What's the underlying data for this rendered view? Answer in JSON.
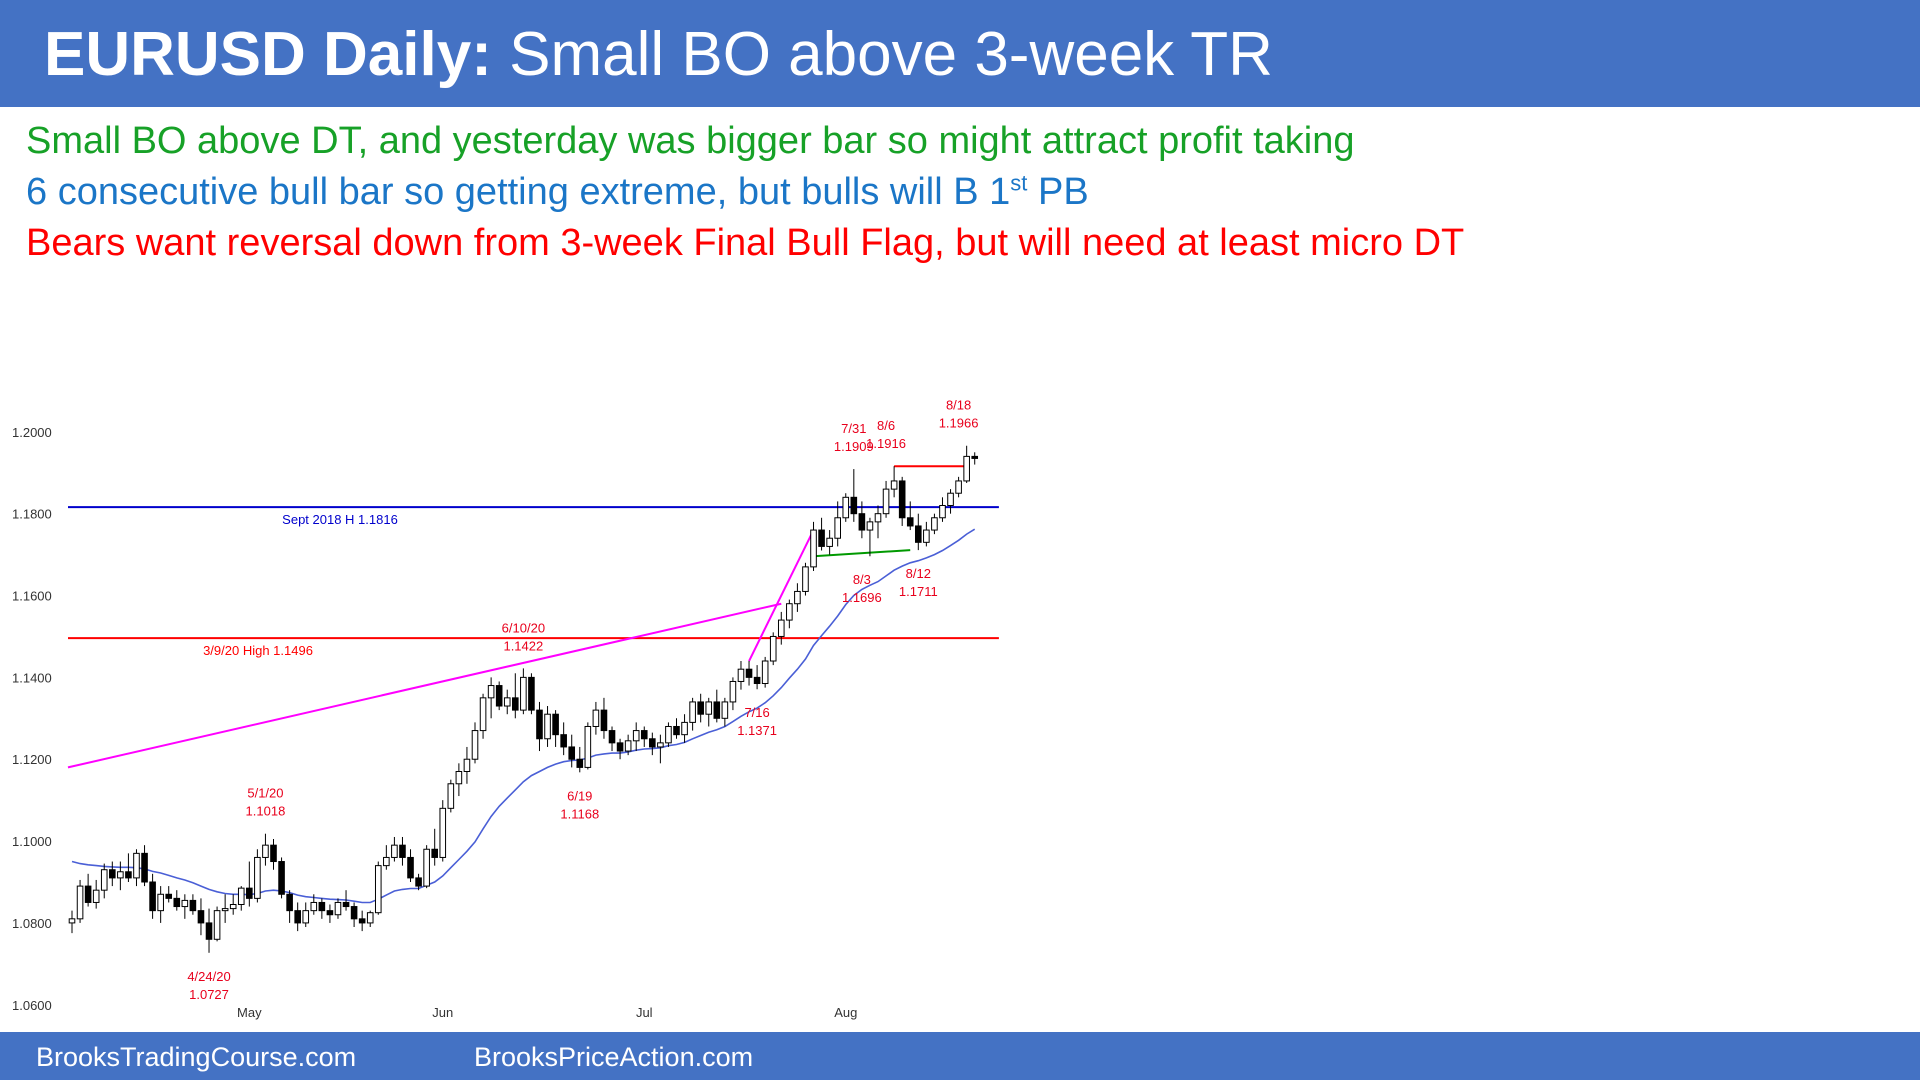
{
  "header": {
    "title_bold": "EURUSD Daily:",
    "title_rest": " Small BO above 3-week TR"
  },
  "notes": [
    {
      "text": "Small BO above DT, and yesterday was bigger bar so might attract profit taking",
      "color": "#17a127"
    },
    {
      "text": "6 consecutive bull bar so getting extreme, but bulls will B 1",
      "sup": "st",
      "tail": " PB",
      "color": "#1b76c7"
    },
    {
      "text": "Bears want reversal down from 3-week Final Bull Flag, but will need at least micro DT",
      "color": "#ff0000"
    }
  ],
  "footer": {
    "left": "BrooksTradingCourse.com",
    "right": "BrooksPriceAction.com"
  },
  "chart_data": {
    "type": "candlestick",
    "title": "",
    "ylim": [
      1.0575,
      1.209
    ],
    "y_ticks": [
      1.06,
      1.08,
      1.1,
      1.12,
      1.14,
      1.16,
      1.18,
      1.2
    ],
    "x_month_labels": [
      {
        "label": "May",
        "bar": 22
      },
      {
        "label": "Jun",
        "bar": 46
      },
      {
        "label": "Jul",
        "bar": 71
      },
      {
        "label": "Aug",
        "bar": 96
      }
    ],
    "candles": [
      [
        1.08,
        1.083,
        1.0775,
        1.081
      ],
      [
        1.081,
        1.0905,
        1.08,
        1.089
      ],
      [
        1.089,
        1.092,
        1.084,
        1.085
      ],
      [
        1.085,
        1.0905,
        1.0835,
        1.088
      ],
      [
        1.088,
        1.0945,
        1.086,
        1.093
      ],
      [
        1.093,
        1.095,
        1.089,
        1.091
      ],
      [
        1.091,
        1.095,
        1.088,
        1.0925
      ],
      [
        1.0925,
        1.097,
        1.09,
        1.091
      ],
      [
        1.091,
        1.098,
        1.089,
        1.097
      ],
      [
        1.097,
        1.099,
        1.089,
        1.09
      ],
      [
        1.09,
        1.092,
        1.081,
        1.083
      ],
      [
        1.083,
        1.089,
        1.08,
        1.087
      ],
      [
        1.087,
        1.089,
        1.085,
        1.086
      ],
      [
        1.086,
        1.088,
        1.083,
        1.084
      ],
      [
        1.084,
        1.087,
        1.081,
        1.0855
      ],
      [
        1.0855,
        1.087,
        1.082,
        1.083
      ],
      [
        1.083,
        1.086,
        1.077,
        1.08
      ],
      [
        1.08,
        1.0835,
        1.0727,
        1.076
      ],
      [
        1.076,
        1.084,
        1.0755,
        1.083
      ],
      [
        1.083,
        1.087,
        1.08,
        1.0835
      ],
      [
        1.0835,
        1.087,
        1.082,
        1.0845
      ],
      [
        1.0845,
        1.089,
        1.083,
        1.0885
      ],
      [
        1.0885,
        1.095,
        1.084,
        1.086
      ],
      [
        1.086,
        1.098,
        1.085,
        1.096
      ],
      [
        1.096,
        1.1018,
        1.094,
        1.099
      ],
      [
        1.099,
        1.1005,
        1.093,
        1.095
      ],
      [
        1.095,
        1.096,
        1.086,
        1.087
      ],
      [
        1.087,
        1.088,
        1.08,
        1.083
      ],
      [
        1.083,
        1.085,
        1.078,
        1.08
      ],
      [
        1.08,
        1.085,
        1.079,
        1.083
      ],
      [
        1.083,
        1.087,
        1.082,
        1.085
      ],
      [
        1.085,
        1.086,
        1.081,
        1.083
      ],
      [
        1.083,
        1.0845,
        1.08,
        1.082
      ],
      [
        1.082,
        1.086,
        1.081,
        1.085
      ],
      [
        1.085,
        1.088,
        1.083,
        1.084
      ],
      [
        1.084,
        1.085,
        1.079,
        1.081
      ],
      [
        1.081,
        1.083,
        1.078,
        1.08
      ],
      [
        1.08,
        1.083,
        1.079,
        1.0825
      ],
      [
        1.0825,
        1.095,
        1.082,
        1.094
      ],
      [
        1.094,
        1.099,
        1.093,
        1.096
      ],
      [
        1.096,
        1.101,
        1.095,
        1.099
      ],
      [
        1.099,
        1.101,
        1.094,
        1.096
      ],
      [
        1.096,
        1.098,
        1.09,
        1.091
      ],
      [
        1.091,
        1.092,
        1.088,
        1.089
      ],
      [
        1.089,
        1.099,
        1.0885,
        1.098
      ],
      [
        1.098,
        1.103,
        1.094,
        1.096
      ],
      [
        1.096,
        1.11,
        1.095,
        1.108
      ],
      [
        1.108,
        1.115,
        1.107,
        1.114
      ],
      [
        1.114,
        1.119,
        1.111,
        1.117
      ],
      [
        1.117,
        1.123,
        1.114,
        1.12
      ],
      [
        1.12,
        1.129,
        1.119,
        1.127
      ],
      [
        1.127,
        1.136,
        1.125,
        1.135
      ],
      [
        1.135,
        1.14,
        1.13,
        1.138
      ],
      [
        1.138,
        1.139,
        1.132,
        1.133
      ],
      [
        1.133,
        1.137,
        1.131,
        1.135
      ],
      [
        1.135,
        1.141,
        1.13,
        1.132
      ],
      [
        1.132,
        1.1422,
        1.131,
        1.14
      ],
      [
        1.14,
        1.141,
        1.131,
        1.132
      ],
      [
        1.132,
        1.134,
        1.122,
        1.125
      ],
      [
        1.125,
        1.133,
        1.123,
        1.131
      ],
      [
        1.131,
        1.132,
        1.123,
        1.126
      ],
      [
        1.126,
        1.129,
        1.121,
        1.123
      ],
      [
        1.123,
        1.126,
        1.118,
        1.12
      ],
      [
        1.12,
        1.123,
        1.1168,
        1.118
      ],
      [
        1.118,
        1.129,
        1.1175,
        1.128
      ],
      [
        1.128,
        1.134,
        1.126,
        1.132
      ],
      [
        1.132,
        1.135,
        1.125,
        1.127
      ],
      [
        1.127,
        1.128,
        1.122,
        1.124
      ],
      [
        1.124,
        1.125,
        1.12,
        1.122
      ],
      [
        1.122,
        1.126,
        1.121,
        1.1245
      ],
      [
        1.1245,
        1.129,
        1.122,
        1.127
      ],
      [
        1.127,
        1.128,
        1.123,
        1.125
      ],
      [
        1.125,
        1.1265,
        1.121,
        1.123
      ],
      [
        1.123,
        1.126,
        1.119,
        1.124
      ],
      [
        1.124,
        1.129,
        1.123,
        1.128
      ],
      [
        1.128,
        1.13,
        1.125,
        1.126
      ],
      [
        1.126,
        1.131,
        1.124,
        1.129
      ],
      [
        1.129,
        1.135,
        1.127,
        1.134
      ],
      [
        1.134,
        1.136,
        1.129,
        1.131
      ],
      [
        1.131,
        1.135,
        1.128,
        1.134
      ],
      [
        1.134,
        1.137,
        1.129,
        1.13
      ],
      [
        1.13,
        1.135,
        1.128,
        1.134
      ],
      [
        1.134,
        1.14,
        1.132,
        1.139
      ],
      [
        1.139,
        1.144,
        1.137,
        1.142
      ],
      [
        1.142,
        1.144,
        1.138,
        1.14
      ],
      [
        1.14,
        1.143,
        1.1371,
        1.1385
      ],
      [
        1.1385,
        1.145,
        1.1375,
        1.144
      ],
      [
        1.144,
        1.151,
        1.143,
        1.15
      ],
      [
        1.15,
        1.156,
        1.148,
        1.154
      ],
      [
        1.154,
        1.159,
        1.152,
        1.158
      ],
      [
        1.158,
        1.163,
        1.156,
        1.161
      ],
      [
        1.161,
        1.168,
        1.16,
        1.167
      ],
      [
        1.167,
        1.178,
        1.166,
        1.176
      ],
      [
        1.176,
        1.179,
        1.171,
        1.172
      ],
      [
        1.172,
        1.176,
        1.17,
        1.174
      ],
      [
        1.174,
        1.183,
        1.172,
        1.179
      ],
      [
        1.179,
        1.185,
        1.178,
        1.184
      ],
      [
        1.184,
        1.1909,
        1.178,
        1.18
      ],
      [
        1.18,
        1.183,
        1.174,
        1.176
      ],
      [
        1.176,
        1.179,
        1.1696,
        1.178
      ],
      [
        1.178,
        1.182,
        1.174,
        1.18
      ],
      [
        1.18,
        1.188,
        1.179,
        1.186
      ],
      [
        1.186,
        1.1916,
        1.184,
        1.188
      ],
      [
        1.188,
        1.189,
        1.177,
        1.179
      ],
      [
        1.179,
        1.183,
        1.176,
        1.177
      ],
      [
        1.177,
        1.18,
        1.1711,
        1.173
      ],
      [
        1.173,
        1.178,
        1.172,
        1.176
      ],
      [
        1.176,
        1.18,
        1.175,
        1.179
      ],
      [
        1.179,
        1.184,
        1.178,
        1.182
      ],
      [
        1.182,
        1.186,
        1.18,
        1.185
      ],
      [
        1.185,
        1.189,
        1.184,
        1.188
      ],
      [
        1.188,
        1.1966,
        1.1875,
        1.194
      ],
      [
        1.194,
        1.195,
        1.192,
        1.1935
      ]
    ],
    "ema": [
      1.095,
      1.0945,
      1.0942,
      1.094,
      1.0938,
      1.0937,
      1.0936,
      1.0936,
      1.0935,
      1.0932,
      1.0926,
      1.0922,
      1.0916,
      1.091,
      1.0905,
      1.0898,
      1.089,
      1.0882,
      1.0876,
      1.0872,
      1.087,
      1.087,
      1.0869,
      1.0872,
      1.0878,
      1.088,
      1.0878,
      1.0874,
      1.0868,
      1.0864,
      1.0862,
      1.086,
      1.0858,
      1.0857,
      1.0856,
      1.0853,
      1.085,
      1.085,
      1.0858,
      1.0868,
      1.0878,
      1.0882,
      1.0884,
      1.0884,
      1.0892,
      1.09,
      1.0915,
      1.0935,
      1.0955,
      1.0975,
      1.0998,
      1.103,
      1.106,
      1.1085,
      1.1105,
      1.1125,
      1.1145,
      1.116,
      1.117,
      1.118,
      1.1188,
      1.1194,
      1.1197,
      1.1198,
      1.1203,
      1.121,
      1.1213,
      1.1215,
      1.1215,
      1.1218,
      1.1222,
      1.1225,
      1.1226,
      1.1228,
      1.1233,
      1.1236,
      1.1241,
      1.125,
      1.1258,
      1.1266,
      1.1272,
      1.128,
      1.1292,
      1.1305,
      1.1316,
      1.1325,
      1.1338,
      1.1355,
      1.1375,
      1.1398,
      1.142,
      1.1445,
      1.1478,
      1.1502,
      1.1525,
      1.155,
      1.1578,
      1.16,
      1.1615,
      1.1625,
      1.1634,
      1.1648,
      1.1662,
      1.1672,
      1.168,
      1.1685,
      1.1692,
      1.17,
      1.171,
      1.1722,
      1.1735,
      1.175,
      1.1762
    ],
    "h_lines": [
      {
        "label": "Sept 2018 H 1.1816",
        "value": 1.1816,
        "color": "#0000cc"
      },
      {
        "label": "3/9/20 High 1.1496",
        "value": 1.1496,
        "color": "#ff0000"
      }
    ],
    "segments": [
      {
        "x1": -0.5,
        "y1": 1.118,
        "x2": 88,
        "y2": 1.158,
        "color": "#ff00ff"
      },
      {
        "x1": 84,
        "y1": 1.144,
        "x2": 92,
        "y2": 1.176,
        "color": "#ff00ff"
      },
      {
        "x1": 102,
        "y1": 1.1916,
        "x2": 111,
        "y2": 1.1916,
        "color": "#ff0000"
      },
      {
        "x1": 92,
        "y1": 1.1696,
        "x2": 104,
        "y2": 1.1711,
        "color": "#009900"
      }
    ],
    "annotations": [
      {
        "date": "4/24/20",
        "price": "1.0727",
        "bar": 17,
        "anchor": 1.0727,
        "pos": "below"
      },
      {
        "date": "5/1/20",
        "price": "1.1018",
        "bar": 24,
        "anchor": 1.1018,
        "pos": "above"
      },
      {
        "date": "6/10/20",
        "price": "1.1422",
        "bar": 56,
        "anchor": 1.1422,
        "pos": "above"
      },
      {
        "date": "6/19",
        "price": "1.1168",
        "bar": 63,
        "anchor": 1.1168,
        "pos": "below"
      },
      {
        "date": "7/16",
        "price": "1.1371",
        "bar": 85,
        "anchor": 1.1371,
        "pos": "below"
      },
      {
        "date": "7/31",
        "price": "1.1909",
        "bar": 97,
        "anchor": 1.1909,
        "pos": "above"
      },
      {
        "date": "8/3",
        "price": "1.1696",
        "bar": 98,
        "anchor": 1.1696,
        "pos": "below"
      },
      {
        "date": "8/6",
        "price": "1.1916",
        "bar": 101,
        "anchor": 1.1916,
        "pos": "above"
      },
      {
        "date": "8/12",
        "price": "1.1711",
        "bar": 105,
        "anchor": 1.1711,
        "pos": "below"
      },
      {
        "date": "8/18",
        "price": "1.1966",
        "bar": 110,
        "anchor": 1.1966,
        "pos": "above"
      }
    ],
    "colors": {
      "bull": "#ffffff",
      "bear": "#000000",
      "ema": "#4a5fd6",
      "annotation": "#e8001c",
      "axis_text": "#333333"
    }
  }
}
